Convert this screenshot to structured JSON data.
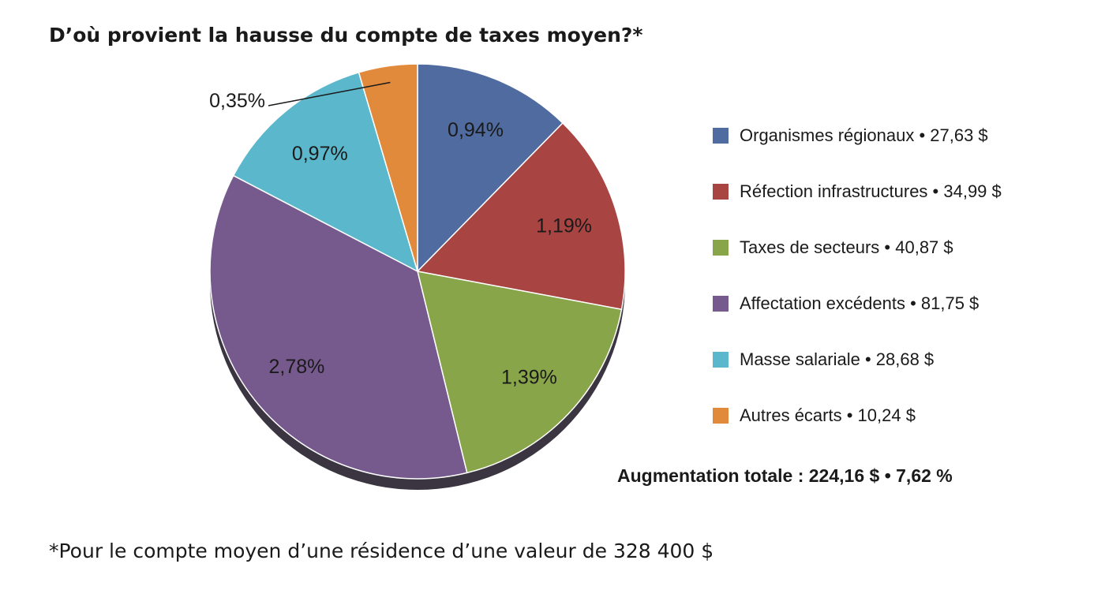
{
  "chart_data": {
    "type": "pie",
    "title": "D’où provient la hausse du compte de taxes moyen?*",
    "slices": [
      {
        "legend": "Organismes régionaux • 27,63 $",
        "value": 27.63,
        "label": "0,94%",
        "color": "#4f6ba0"
      },
      {
        "legend": "Réfection infrastructures • 34,99 $",
        "value": 34.99,
        "label": "1,19%",
        "color": "#a84441"
      },
      {
        "legend": "Taxes de secteurs • 40,87 $",
        "value": 40.87,
        "label": "1,39%",
        "color": "#88a54a"
      },
      {
        "legend": "Affectation excédents • 81,75 $",
        "value": 81.75,
        "label": "2,78%",
        "color": "#765a8e"
      },
      {
        "legend": "Masse salariale • 28,68 $",
        "value": 28.68,
        "label": "0,97%",
        "color": "#5bb8cc"
      },
      {
        "legend": "Autres écarts • 10,24 $",
        "value": 10.24,
        "label": "0,35%",
        "color": "#e18a3b"
      }
    ],
    "legend_position": "right",
    "total_label": "Augmentation totale : 224,16 $ • 7,62 %",
    "footnote": "*Pour le compte moyen d’une résidence d’une valeur de 328 400 $"
  }
}
